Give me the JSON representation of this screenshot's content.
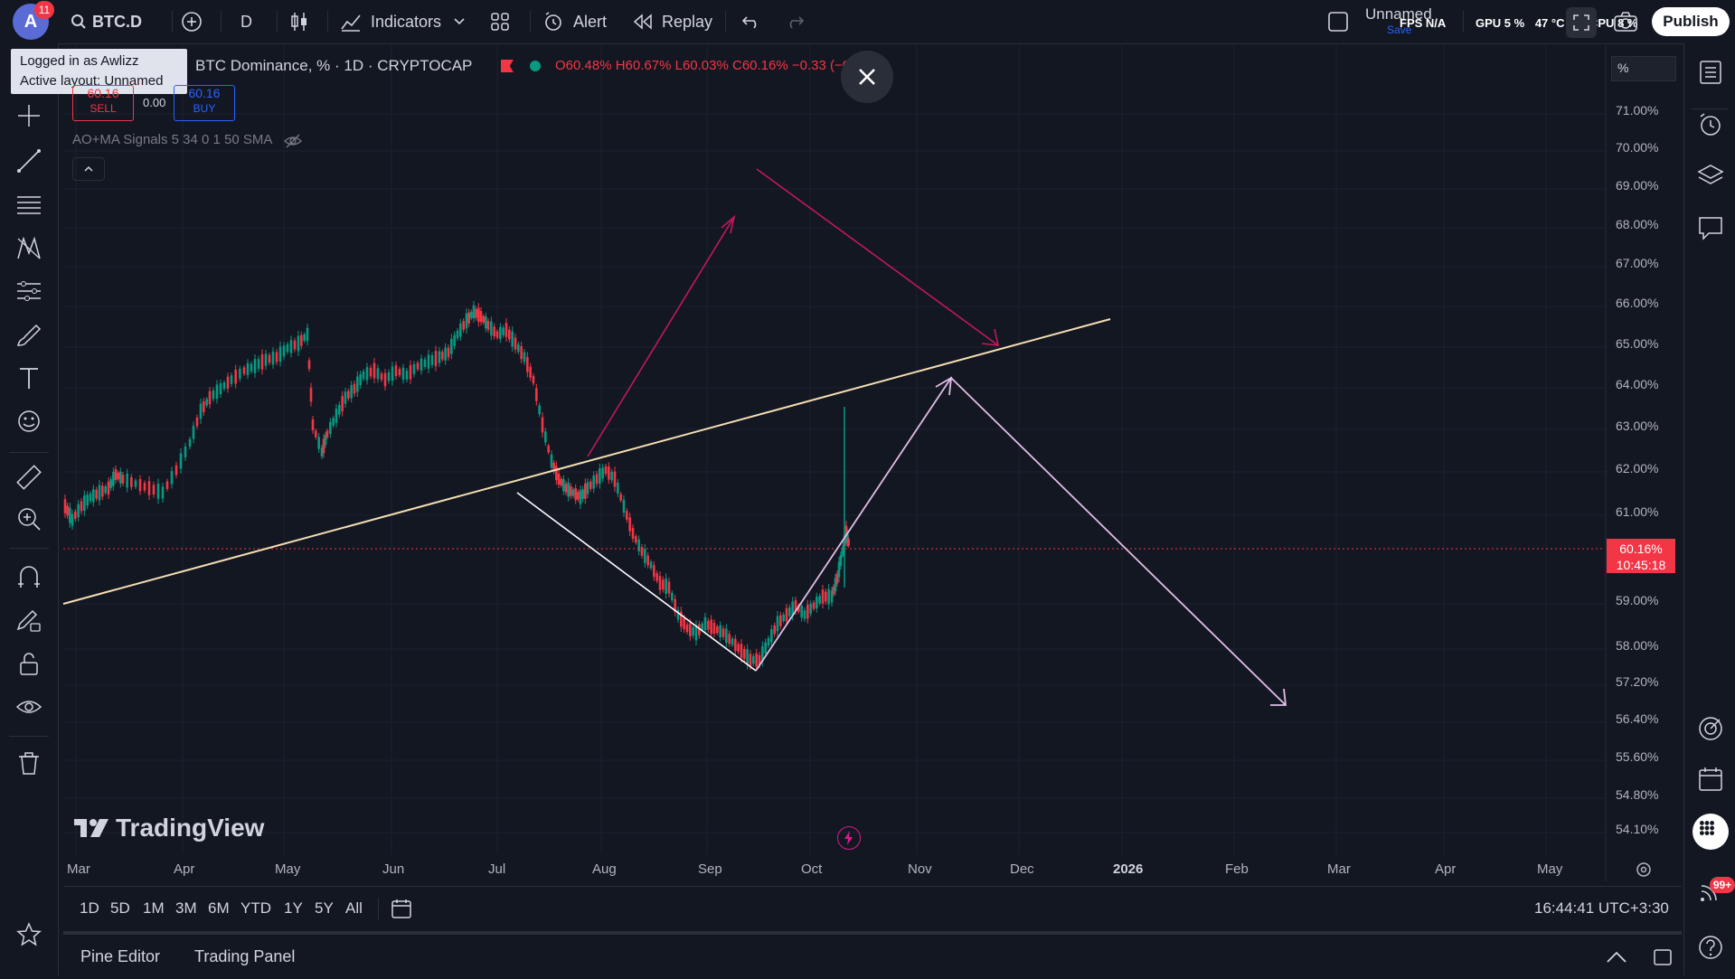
{
  "topbar": {
    "avatar_letter": "A",
    "notification_count": "11",
    "symbol": "BTC.D",
    "interval": "D",
    "indicators_label": "Indicators",
    "alert_label": "Alert",
    "replay_label": "Replay",
    "layout_name": "Unnamed",
    "save_label": "Save",
    "fps_label": "FPS",
    "fps_value": "N/A",
    "gpu_label": "GPU",
    "gpu_value": "5 %",
    "temp_value": "47 °C",
    "cpu_label": "CPU",
    "cpu_value": "8 %",
    "publish_label": "Publish"
  },
  "tooltip": {
    "line1": "Logged in as Awlizz",
    "line2": "Active layout: Unnamed"
  },
  "legend": {
    "title": "BTC Dominance, % · 1D · CRYPTOCAP",
    "open": "O60.48%",
    "high": "H60.67%",
    "low": "L60.03%",
    "close": "C60.16%",
    "change": "−0.33",
    "change_pct": "(−0.55%)",
    "sell_price": "60.16",
    "sell_label": "SELL",
    "spread": "0.00",
    "buy_price": "60.16",
    "buy_label": "BUY",
    "indicator": "AO+MA Signals 5 34 0 1 50 SMA",
    "scale_unit": "%"
  },
  "price_axis": [
    "71.00%",
    "70.00%",
    "69.00%",
    "68.00%",
    "67.00%",
    "66.00%",
    "65.00%",
    "64.00%",
    "63.00%",
    "62.00%",
    "61.00%",
    "59.00%",
    "58.00%",
    "57.20%",
    "56.40%",
    "55.60%",
    "54.80%",
    "54.10%"
  ],
  "current_price": {
    "value": "60.16%",
    "countdown": "10:45:18"
  },
  "time_axis": [
    "Mar",
    "Apr",
    "May",
    "Jun",
    "Jul",
    "Aug",
    "Sep",
    "Oct",
    "Nov",
    "Dec",
    "2026",
    "Feb",
    "Mar",
    "Apr",
    "May"
  ],
  "watermark": "TradingView",
  "ranges": [
    "1D",
    "5D",
    "1M",
    "3M",
    "6M",
    "YTD",
    "1Y",
    "5Y",
    "All"
  ],
  "clock": "16:44:41 UTC+3:30",
  "bottom_tabs": [
    "Pine Editor",
    "Trading Panel"
  ],
  "notif_badge": "99+",
  "colors": {
    "bg": "#131722",
    "up": "#089981",
    "down": "#f23645",
    "trend": "#f5deb3",
    "arrow_pink": "#c2185b",
    "arrow_light": "#e1bee7"
  }
}
